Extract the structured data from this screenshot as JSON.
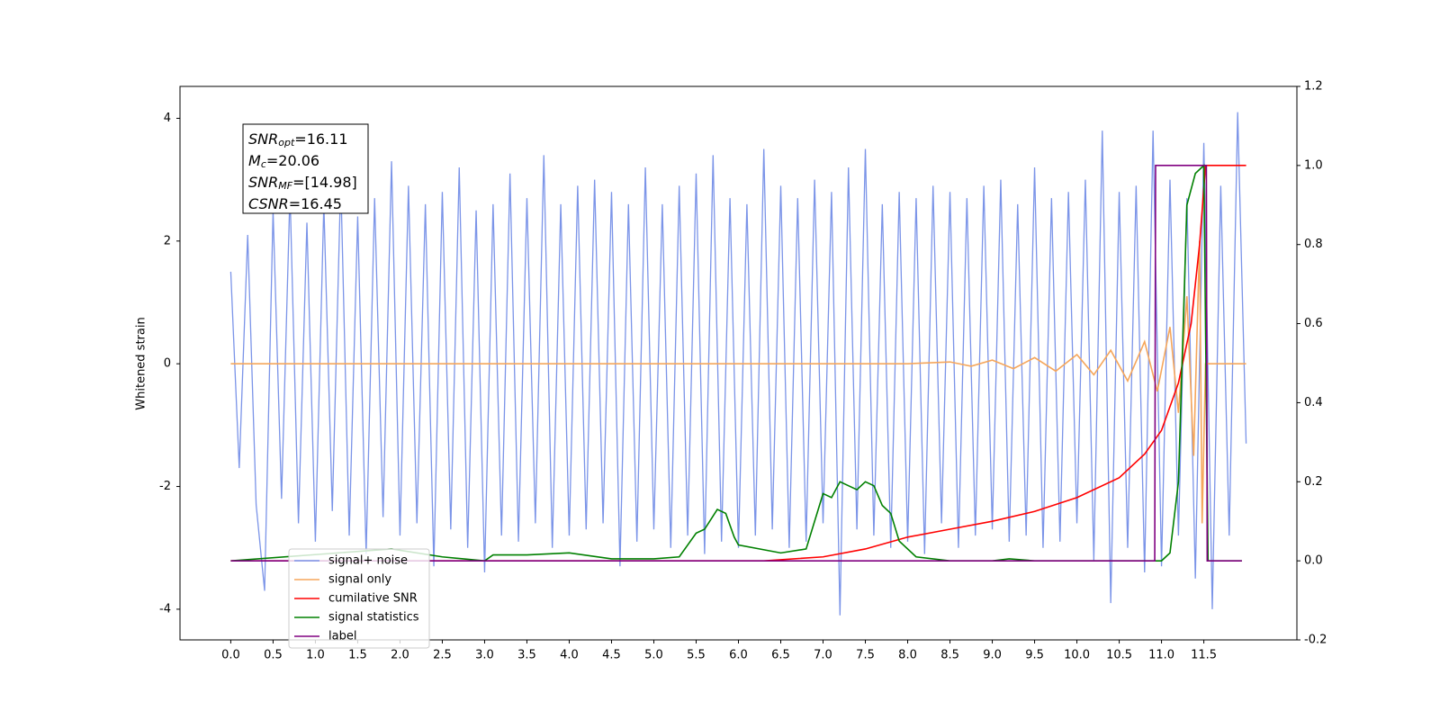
{
  "chart_data": {
    "type": "line",
    "ylabel": "Whitened strain",
    "xlim": [
      -0.6,
      12.6
    ],
    "ylim": [
      -4.5,
      4.52
    ],
    "y2lim": [
      -0.2,
      1.2
    ],
    "xticks": [
      {
        "value": 0,
        "label": "0.0"
      },
      0.5,
      {
        "value": 1,
        "label": "1.0"
      },
      1.5,
      {
        "value": 2,
        "label": "2.0"
      },
      2.5,
      {
        "value": 3,
        "label": "3.0"
      },
      3.5,
      {
        "value": 4,
        "label": "4.0"
      },
      4.5,
      {
        "value": 5,
        "label": "5.0"
      },
      5.5,
      {
        "value": 6,
        "label": "6.0"
      },
      6.5,
      {
        "value": 7,
        "label": "7.0"
      },
      7.5,
      {
        "value": 8,
        "label": "8.0"
      },
      8.5,
      {
        "value": 9,
        "label": "9.0"
      },
      9.5,
      {
        "value": 10,
        "label": "10.0"
      },
      10.5,
      {
        "value": 11,
        "label": "11.0"
      },
      11.5
    ],
    "yticks": [
      -4,
      -2,
      0,
      2,
      4
    ],
    "y2ticks": [
      -0.2,
      {
        "value": 0,
        "label": "0.0"
      },
      0.2,
      0.4,
      0.6,
      0.8,
      {
        "value": 1,
        "label": "1.0"
      },
      1.2
    ],
    "legend": "lower left",
    "annotations": [
      {
        "main": "SNR",
        "sub": "opt",
        "text": "=16.11"
      },
      {
        "main": "M",
        "sub": "c",
        "text": "=20.06"
      },
      {
        "main": "SNR",
        "sub": "MF",
        "text": "=[14.98]"
      },
      {
        "main": "CSNR",
        "sub": "",
        "text": "=16.45"
      }
    ],
    "series": [
      {
        "name": "signal+ noise",
        "color": "#7b94e8",
        "x": [
          0,
          0.1,
          0.2,
          0.3,
          0.4,
          0.5,
          0.6,
          0.7,
          0.8,
          0.9,
          1,
          1.1,
          1.2,
          1.3,
          1.4,
          1.5,
          1.6,
          1.7,
          1.8,
          1.9,
          2,
          2.1,
          2.2,
          2.3,
          2.4,
          2.5,
          2.6,
          2.7,
          2.8,
          2.9,
          3,
          3.1,
          3.2,
          3.3,
          3.4,
          3.5,
          3.6,
          3.7,
          3.8,
          3.9,
          4,
          4.1,
          4.2,
          4.3,
          4.4,
          4.5,
          4.6,
          4.7,
          4.8,
          4.9,
          5,
          5.1,
          5.2,
          5.3,
          5.4,
          5.5,
          5.6,
          5.7,
          5.8,
          5.9,
          6,
          6.1,
          6.2,
          6.3,
          6.4,
          6.5,
          6.6,
          6.7,
          6.8,
          6.9,
          7,
          7.1,
          7.2,
          7.3,
          7.4,
          7.5,
          7.6,
          7.7,
          7.8,
          7.9,
          8,
          8.1,
          8.2,
          8.3,
          8.4,
          8.5,
          8.6,
          8.7,
          8.8,
          8.9,
          9,
          9.1,
          9.2,
          9.3,
          9.4,
          9.5,
          9.6,
          9.7,
          9.8,
          9.9,
          10,
          10.1,
          10.2,
          10.3,
          10.4,
          10.5,
          10.6,
          10.7,
          10.8,
          10.9,
          11,
          11.1,
          11.2,
          11.3,
          11.4,
          11.5,
          11.6,
          11.7,
          11.8,
          11.9,
          12
        ],
        "values": [
          1.5,
          -1.7,
          2.1,
          -2.3,
          -3.7,
          2.5,
          -2.2,
          2.8,
          -2.6,
          2.3,
          -2.9,
          2.6,
          -2.4,
          3.0,
          -2.8,
          2.4,
          -3.1,
          2.7,
          -2.5,
          3.3,
          -2.8,
          2.9,
          -2.6,
          2.6,
          -3.3,
          2.8,
          -2.7,
          3.2,
          -3.0,
          2.5,
          -3.4,
          2.6,
          -2.8,
          3.1,
          -2.9,
          2.7,
          -2.6,
          3.4,
          -3.0,
          2.6,
          -2.8,
          2.9,
          -2.7,
          3.0,
          -2.6,
          2.8,
          -3.3,
          2.6,
          -2.9,
          3.2,
          -2.7,
          2.6,
          -3.0,
          2.9,
          -2.8,
          3.1,
          -3.1,
          3.4,
          -2.9,
          2.7,
          -3.0,
          2.6,
          -2.8,
          3.5,
          -2.7,
          2.9,
          -3.0,
          2.7,
          -2.9,
          3.0,
          -2.6,
          2.8,
          -4.1,
          3.2,
          -2.7,
          3.5,
          -2.8,
          2.6,
          -3.0,
          2.8,
          -2.9,
          2.7,
          -3.1,
          2.9,
          -2.6,
          2.8,
          -3.0,
          2.7,
          -2.8,
          2.9,
          -2.7,
          3.0,
          -2.9,
          2.6,
          -2.8,
          3.2,
          -3.0,
          2.7,
          -2.9,
          2.8,
          -2.6,
          3.0,
          -3.2,
          3.8,
          -3.9,
          2.8,
          -3.0,
          2.9,
          -3.4,
          3.8,
          -3.3,
          3.0,
          -2.8,
          2.7,
          -3.5,
          3.6,
          -4.0,
          2.9,
          -2.8,
          4.1,
          -1.3
        ]
      },
      {
        "name": "signal only",
        "color": "#f5a65b",
        "x": [
          0,
          8,
          8.5,
          8.75,
          9,
          9.25,
          9.5,
          9.75,
          10,
          10.2,
          10.4,
          10.6,
          10.8,
          10.95,
          11.1,
          11.2,
          11.3,
          11.38,
          11.45,
          11.48,
          11.52,
          12
        ],
        "values": [
          0,
          0,
          0.03,
          -0.04,
          0.06,
          -0.08,
          0.1,
          -0.12,
          0.15,
          -0.18,
          0.22,
          -0.28,
          0.36,
          -0.45,
          0.6,
          -0.8,
          1.1,
          -1.5,
          2.0,
          -2.6,
          0,
          0
        ]
      },
      {
        "name": "cumilative SNR",
        "color": "#ff0000",
        "axis": "y2",
        "x": [
          0,
          6.3,
          7,
          7.5,
          8,
          8.5,
          9,
          9.5,
          10,
          10.5,
          10.8,
          11,
          11.2,
          11.35,
          11.45,
          11.52,
          12
        ],
        "values": [
          0,
          0,
          0.01,
          0.03,
          0.06,
          0.08,
          0.1,
          0.125,
          0.16,
          0.21,
          0.27,
          0.33,
          0.45,
          0.6,
          0.8,
          1.0,
          1.0
        ]
      },
      {
        "name": "signal statistics",
        "color": "#008000",
        "axis": "y2",
        "x": [
          0,
          1.9,
          2.5,
          3,
          3.1,
          3.5,
          4,
          4.5,
          5,
          5.3,
          5.5,
          5.6,
          5.75,
          5.85,
          5.95,
          6,
          6.5,
          6.8,
          7,
          7.1,
          7.2,
          7.3,
          7.4,
          7.5,
          7.6,
          7.7,
          7.8,
          7.9,
          8.1,
          8.5,
          9,
          9.2,
          9.5,
          10,
          11,
          11.1,
          11.2,
          11.3,
          11.4,
          11.5,
          11.55,
          11.95
        ],
        "values": [
          0,
          0.03,
          0.01,
          0.0,
          0.015,
          0.015,
          0.02,
          0.005,
          0.005,
          0.01,
          0.07,
          0.08,
          0.13,
          0.12,
          0.06,
          0.04,
          0.02,
          0.03,
          0.17,
          0.16,
          0.2,
          0.19,
          0.18,
          0.2,
          0.19,
          0.14,
          0.12,
          0.05,
          0.01,
          0.0,
          0.0,
          0.005,
          0.0,
          0.0,
          0.0,
          0.02,
          0.2,
          0.9,
          0.98,
          1.0,
          0.0,
          0.0
        ]
      },
      {
        "name": "label",
        "color": "#800080",
        "axis": "y2",
        "x": [
          0,
          10.92,
          10.93,
          11.53,
          11.54,
          11.95
        ],
        "values": [
          0,
          0,
          1,
          1,
          0,
          0
        ]
      }
    ]
  }
}
